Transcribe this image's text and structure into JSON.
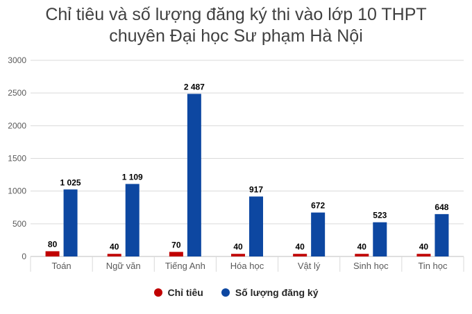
{
  "title_lines": [
    "Chỉ tiêu và số lượng đăng ký thi vào lớp 10 THPT",
    "chuyên Đại học Sư phạm Hà Nội"
  ],
  "chart_data": {
    "type": "bar",
    "title": "Chỉ tiêu và số lượng đăng ký thi vào lớp 10 THPT chuyên Đại học Sư phạm Hà Nội",
    "categories": [
      "Toán",
      "Ngữ văn",
      "Tiếng Anh",
      "Hóa học",
      "Vật lý",
      "Sinh học",
      "Tin học"
    ],
    "series": [
      {
        "name": "Chỉ tiêu",
        "color": "#c00000",
        "values": [
          80,
          40,
          70,
          40,
          40,
          40,
          40
        ],
        "labels": [
          "80",
          "40",
          "70",
          "40",
          "40",
          "40",
          "40"
        ]
      },
      {
        "name": "Số lượng đăng ký",
        "color": "#0d47a1",
        "values": [
          1025,
          1109,
          2487,
          917,
          672,
          523,
          648
        ],
        "labels": [
          "1 025",
          "1 109",
          "2 487",
          "917",
          "672",
          "523",
          "648"
        ]
      }
    ],
    "y_ticks": [
      "0",
      "500",
      "1000",
      "1500",
      "2000",
      "2500",
      "3000"
    ],
    "ylim": [
      0,
      3000
    ],
    "xlabel": "",
    "ylabel": "",
    "grid": true,
    "legend_position": "bottom"
  }
}
